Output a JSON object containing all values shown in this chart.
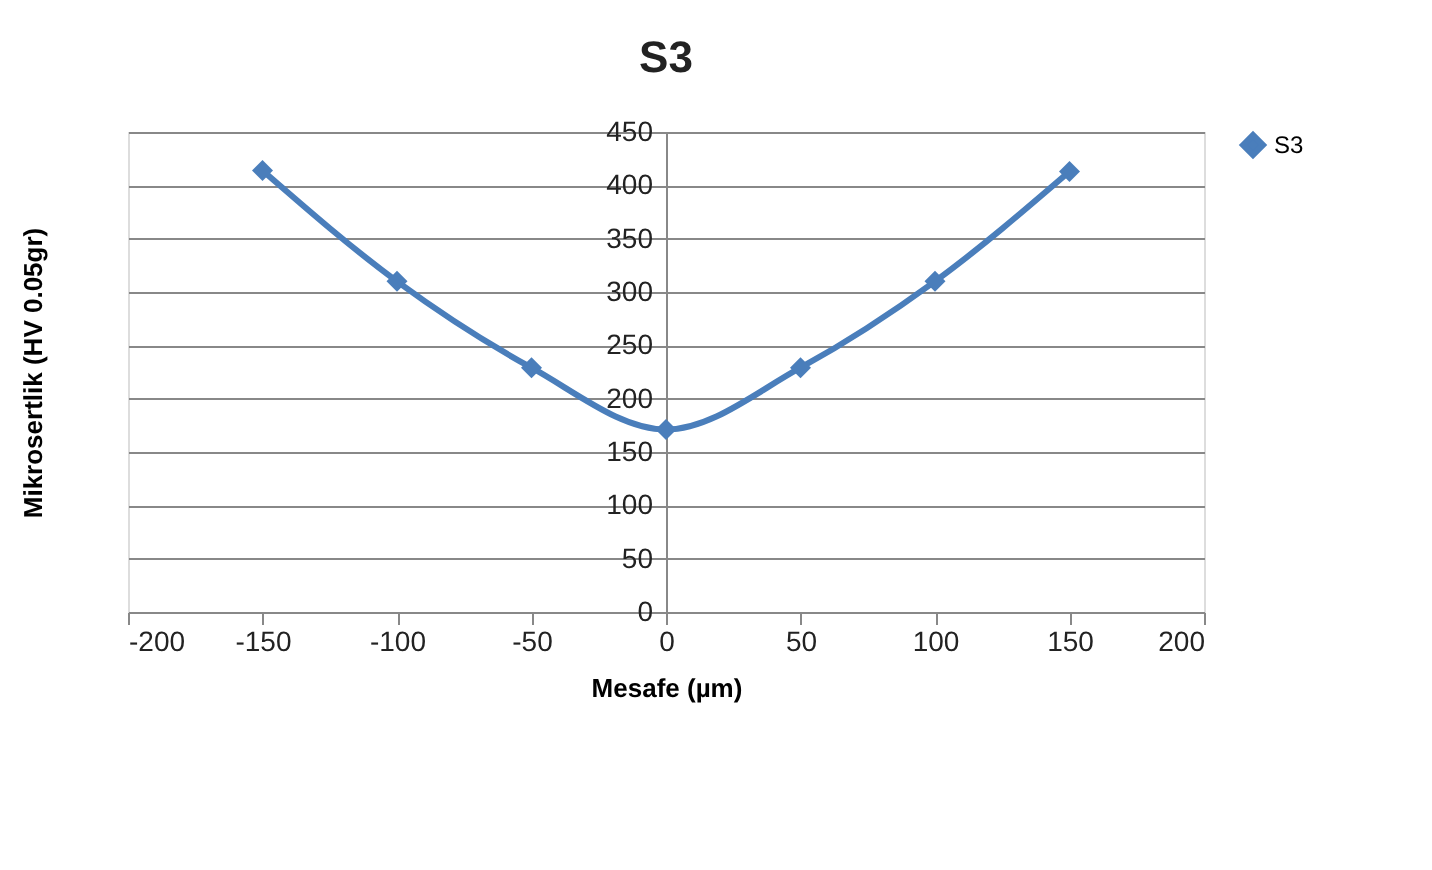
{
  "chart_data": {
    "type": "line",
    "title": "S3",
    "xlabel": "Mesafe (µm)",
    "ylabel": "Mikrosertlik (HV 0.05gr)",
    "x": [
      -150,
      -100,
      -50,
      0,
      50,
      100,
      150
    ],
    "series": [
      {
        "name": "S3",
        "color": "#4a7ebb",
        "values": [
          414,
          310,
          229,
          171,
          229,
          310,
          413
        ]
      }
    ],
    "xlim": [
      -200,
      200
    ],
    "xticks": [
      -200,
      -150,
      -100,
      -50,
      0,
      50,
      100,
      150,
      200
    ],
    "ylim": [
      0,
      450
    ],
    "yticks": [
      0,
      50,
      100,
      150,
      200,
      250,
      300,
      350,
      400,
      450
    ],
    "grid": "y",
    "legend": "right",
    "marker": "diamond",
    "line_style": "solid"
  }
}
